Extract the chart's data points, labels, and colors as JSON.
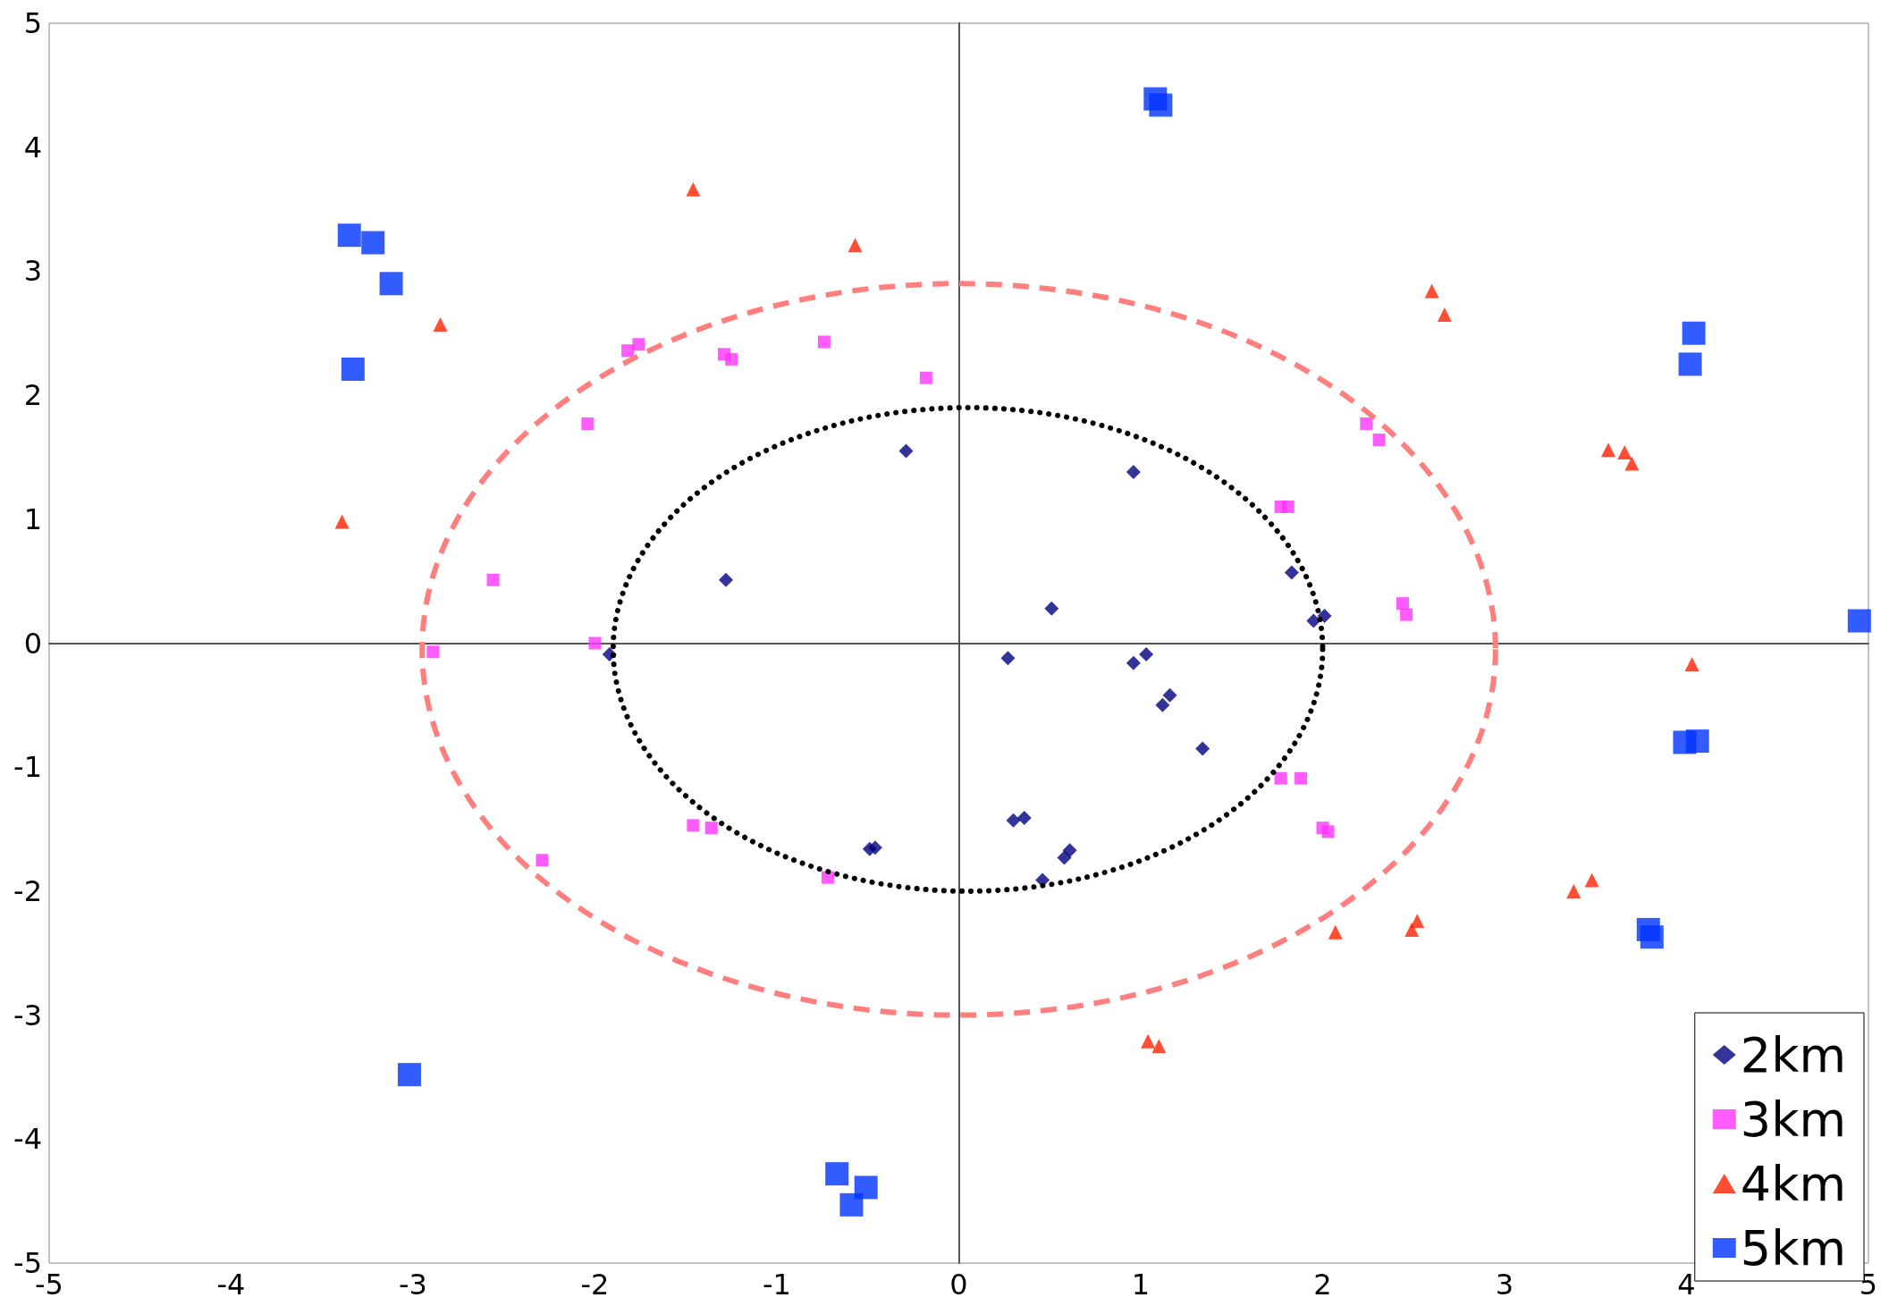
{
  "chart_data": {
    "type": "scatter",
    "xlim": [
      -5,
      5
    ],
    "ylim": [
      -5,
      5
    ],
    "xticks": [
      -5,
      -4,
      -3,
      -2,
      -1,
      0,
      1,
      2,
      3,
      4,
      5
    ],
    "yticks": [
      -5,
      -4,
      -3,
      -2,
      -1,
      0,
      1,
      2,
      3,
      4,
      5
    ],
    "legend": "bottom right",
    "series": [
      {
        "name": "2km",
        "color": "#000080",
        "marker": "diamond",
        "x": [
          -0.29,
          -1.28,
          0.96,
          0.51,
          1.83,
          1.95,
          2.01,
          -1.92,
          0.27,
          0.96,
          1.03,
          1.16,
          1.12,
          1.34,
          0.3,
          0.36,
          -0.49,
          -0.46,
          0.61,
          0.58,
          0.46
        ],
        "values": [
          1.55,
          0.51,
          1.38,
          0.28,
          0.57,
          0.18,
          0.22,
          -0.09,
          -0.12,
          -0.16,
          -0.09,
          -0.42,
          -0.5,
          -0.85,
          -1.43,
          -1.41,
          -1.66,
          -1.65,
          -1.67,
          -1.73,
          -1.91
        ]
      },
      {
        "name": "3km",
        "color": "#ff33ff",
        "marker": "square",
        "x": [
          -1.82,
          -1.76,
          -1.29,
          -1.25,
          -0.74,
          -0.18,
          -2.04,
          -2.56,
          -2.0,
          -2.89,
          2.24,
          2.31,
          1.77,
          1.81,
          2.44,
          2.46,
          1.77,
          1.88,
          2.0,
          2.03,
          -1.46,
          -1.36,
          -2.29,
          -0.72
        ],
        "values": [
          2.36,
          2.41,
          2.33,
          2.29,
          2.43,
          2.14,
          1.77,
          0.51,
          0.0,
          -0.07,
          1.77,
          1.64,
          1.1,
          1.1,
          0.32,
          0.23,
          -1.09,
          -1.09,
          -1.49,
          -1.52,
          -1.47,
          -1.49,
          -1.75,
          -1.89
        ]
      },
      {
        "name": "4km",
        "color": "#ff2200",
        "marker": "triangle",
        "x": [
          -1.46,
          -0.57,
          -2.85,
          -3.39,
          2.6,
          2.67,
          3.57,
          3.66,
          3.7,
          4.03,
          3.38,
          3.48,
          2.07,
          2.49,
          2.52,
          1.04,
          1.1
        ],
        "values": [
          3.66,
          3.21,
          2.57,
          0.98,
          2.84,
          2.65,
          1.56,
          1.54,
          1.45,
          -0.17,
          -2.0,
          -1.91,
          -2.33,
          -2.31,
          -2.24,
          -3.21,
          -3.25
        ]
      },
      {
        "name": "5km",
        "color": "#0033ff",
        "marker": "square",
        "x": [
          1.08,
          1.11,
          -3.35,
          -3.22,
          -3.12,
          -3.33,
          4.04,
          4.02,
          4.95,
          3.99,
          4.06,
          3.79,
          3.81,
          -3.02,
          -0.67,
          -0.51,
          -0.59
        ],
        "values": [
          4.39,
          4.34,
          3.29,
          3.23,
          2.9,
          2.21,
          2.5,
          2.25,
          0.18,
          -0.8,
          -0.79,
          -2.31,
          -2.37,
          -3.48,
          -4.28,
          -4.39,
          -4.53
        ]
      }
    ]
  }
}
